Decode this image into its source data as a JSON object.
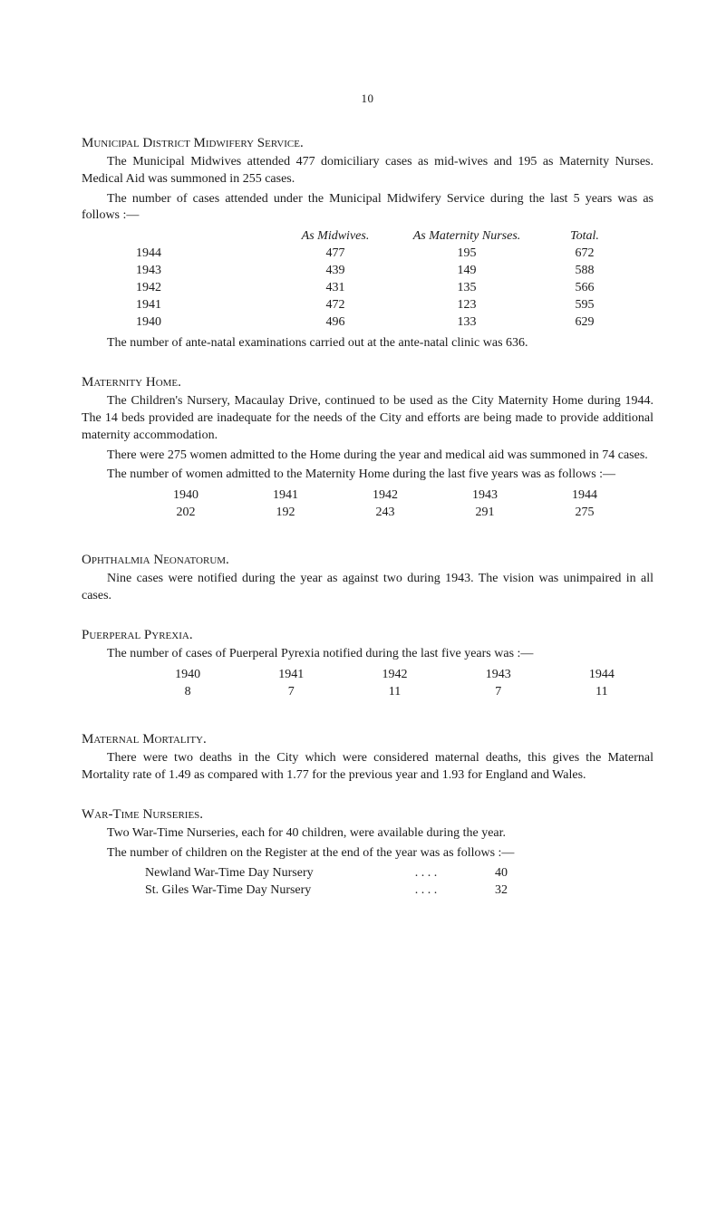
{
  "page_number": "10",
  "sections": {
    "municipal_district": {
      "heading": "Municipal District Midwifery Service.",
      "para1": "The Municipal Midwives attended 477 domiciliary cases as mid-wives and 195 as Maternity Nurses. Medical Aid was summoned in 255 cases.",
      "para2": "The number of cases attended under the Municipal Midwifery Service during the last 5 years was as follows :—",
      "table": {
        "header": {
          "midwives": "As Midwives.",
          "nurses": "As Maternity Nurses.",
          "total": "Total."
        },
        "rows": [
          {
            "year": "1944",
            "midwives": "477",
            "nurses": "195",
            "total": "672"
          },
          {
            "year": "1943",
            "midwives": "439",
            "nurses": "149",
            "total": "588"
          },
          {
            "year": "1942",
            "midwives": "431",
            "nurses": "135",
            "total": "566"
          },
          {
            "year": "1941",
            "midwives": "472",
            "nurses": "123",
            "total": "595"
          },
          {
            "year": "1940",
            "midwives": "496",
            "nurses": "133",
            "total": "629"
          }
        ]
      },
      "para3": "The number of ante-natal examinations carried out at the ante-natal clinic was 636."
    },
    "maternity_home": {
      "heading": "Maternity Home.",
      "para1": "The Children's Nursery, Macaulay Drive, continued to be used as the City Maternity Home during 1944. The 14 beds provided are inadequate for the needs of the City and efforts are being made to provide additional maternity accommodation.",
      "para2": "There were 275 women admitted to the Home during the year and medical aid was summoned in 74 cases.",
      "para3": "The number of women admitted to the Maternity Home during the last five years was as follows :—",
      "table": {
        "years": [
          "1940",
          "1941",
          "1942",
          "1943",
          "1944"
        ],
        "values": [
          "202",
          "192",
          "243",
          "291",
          "275"
        ]
      }
    },
    "ophthalmia": {
      "heading": "Ophthalmia Neonatorum.",
      "para1": "Nine cases were notified during the year as against two during 1943. The vision was unimpaired in all cases."
    },
    "puerperal": {
      "heading": "Puerperal Pyrexia.",
      "para1": "The number of cases of Puerperal Pyrexia notified during the last five years was :—",
      "table": {
        "years": [
          "1940",
          "1941",
          "1942",
          "1943",
          "1944"
        ],
        "values": [
          "8",
          "7",
          "11",
          "7",
          "11"
        ]
      }
    },
    "maternal_mortality": {
      "heading": "Maternal Mortality.",
      "para1": "There were two deaths in the City which were considered maternal deaths, this gives the Maternal Mortality rate of 1.49 as compared with 1.77 for the previous year and 1.93 for England and Wales."
    },
    "wartime_nurseries": {
      "heading": "War-Time Nurseries.",
      "para1": "Two War-Time Nurseries, each for 40 children, were available during the year.",
      "para2": "The number of children on the Register at the end of the year was as follows :—",
      "entries": [
        {
          "label": "Newland War-Time Day Nursery",
          "dots": ". .     . .",
          "value": "40"
        },
        {
          "label": "St. Giles War-Time Day Nursery",
          "dots": ". .     . .",
          "value": "32"
        }
      ]
    }
  }
}
